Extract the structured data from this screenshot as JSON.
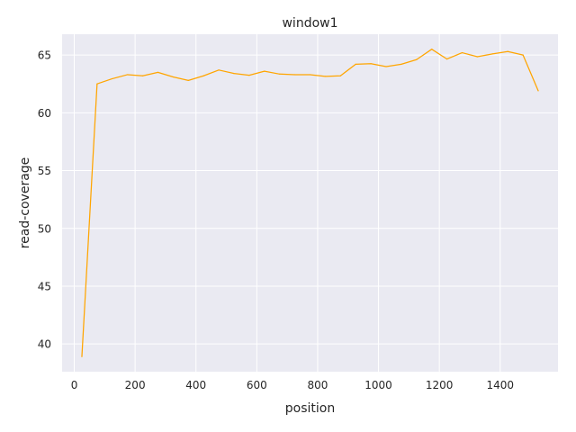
{
  "chart_data": {
    "type": "line",
    "title": "window1",
    "xlabel": "position",
    "ylabel": "read-coverage",
    "xlim": [
      -40,
      1590
    ],
    "ylim": [
      37.6,
      66.8
    ],
    "xticks": [
      0,
      200,
      400,
      600,
      800,
      1000,
      1200,
      1400
    ],
    "yticks": [
      40,
      45,
      50,
      55,
      60,
      65
    ],
    "grid": true,
    "legend": "none",
    "colors": {
      "background": "#EAEAF2",
      "grid": "#FFFFFF",
      "line": "#FFA500"
    },
    "series": [
      {
        "x": [
          25,
          75,
          125,
          175,
          225,
          275,
          325,
          375,
          425,
          475,
          525,
          575,
          625,
          675,
          725,
          775,
          825,
          875,
          925,
          975,
          1025,
          1075,
          1125,
          1175,
          1225,
          1275,
          1325,
          1375,
          1425,
          1475,
          1525
        ],
        "values": [
          38.9,
          62.5,
          62.95,
          63.3,
          63.2,
          63.5,
          63.1,
          62.8,
          63.2,
          63.7,
          63.4,
          63.25,
          63.6,
          63.35,
          63.3,
          63.3,
          63.15,
          63.2,
          64.2,
          64.25,
          64.0,
          64.2,
          64.6,
          65.5,
          64.65,
          65.2,
          64.85,
          65.1,
          65.3,
          65.0,
          61.9
        ]
      }
    ]
  }
}
